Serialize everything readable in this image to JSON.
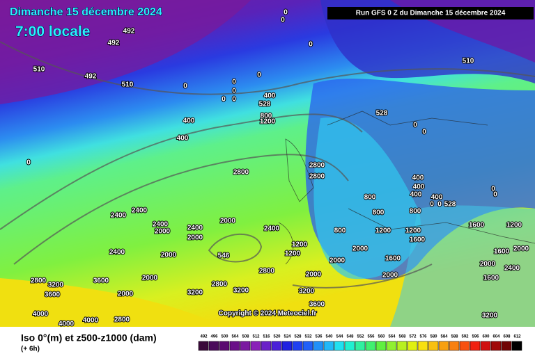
{
  "header": {
    "date": "Dimanche 15 décembre 2024",
    "time": "7:00 locale",
    "run": "Run GFS 0 Z du Dimanche 15 décembre 2024"
  },
  "footer": {
    "title": "Iso 0°(m) et z500-z1000 (dam)",
    "lead": "(+ 6h)",
    "copyright": "Copyright © 2024 Meteociel.fr"
  },
  "legend": {
    "labels": [
      "492",
      "496",
      "500",
      "504",
      "508",
      "512",
      "516",
      "520",
      "524",
      "528",
      "532",
      "536",
      "540",
      "544",
      "548",
      "552",
      "556",
      "560",
      "564",
      "568",
      "572",
      "576",
      "580",
      "584",
      "588",
      "592",
      "596",
      "600",
      "604",
      "608",
      "612"
    ]
  },
  "map_labels": [
    "492",
    "492",
    "510",
    "492",
    "510",
    "0",
    "0",
    "0",
    "0",
    "0",
    "0",
    "0",
    "0",
    "0",
    "400",
    "528",
    "800",
    "1200",
    "400",
    "400",
    "0",
    "528",
    "510",
    "0",
    "0",
    "2800",
    "2800",
    "2800",
    "400",
    "400",
    "400",
    "400",
    "0",
    "0",
    "528",
    "0",
    "0",
    "800",
    "800",
    "800",
    "1600",
    "1200",
    "800",
    "1200",
    "1200",
    "1600",
    "2400",
    "2000",
    "2400",
    "2400",
    "2400",
    "2000",
    "2400",
    "2000",
    "546",
    "2000",
    "2400",
    "2800",
    "3200",
    "3600",
    "3600",
    "2000",
    "2800",
    "2000",
    "2000",
    "2000",
    "1600",
    "2000",
    "3200",
    "2800",
    "3200",
    "3200",
    "3600",
    "2800",
    "4000",
    "4000",
    "4000",
    "3200",
    "1600",
    "2000",
    "2400",
    "2000",
    "1600",
    "1200",
    "1200",
    "2000"
  ]
}
